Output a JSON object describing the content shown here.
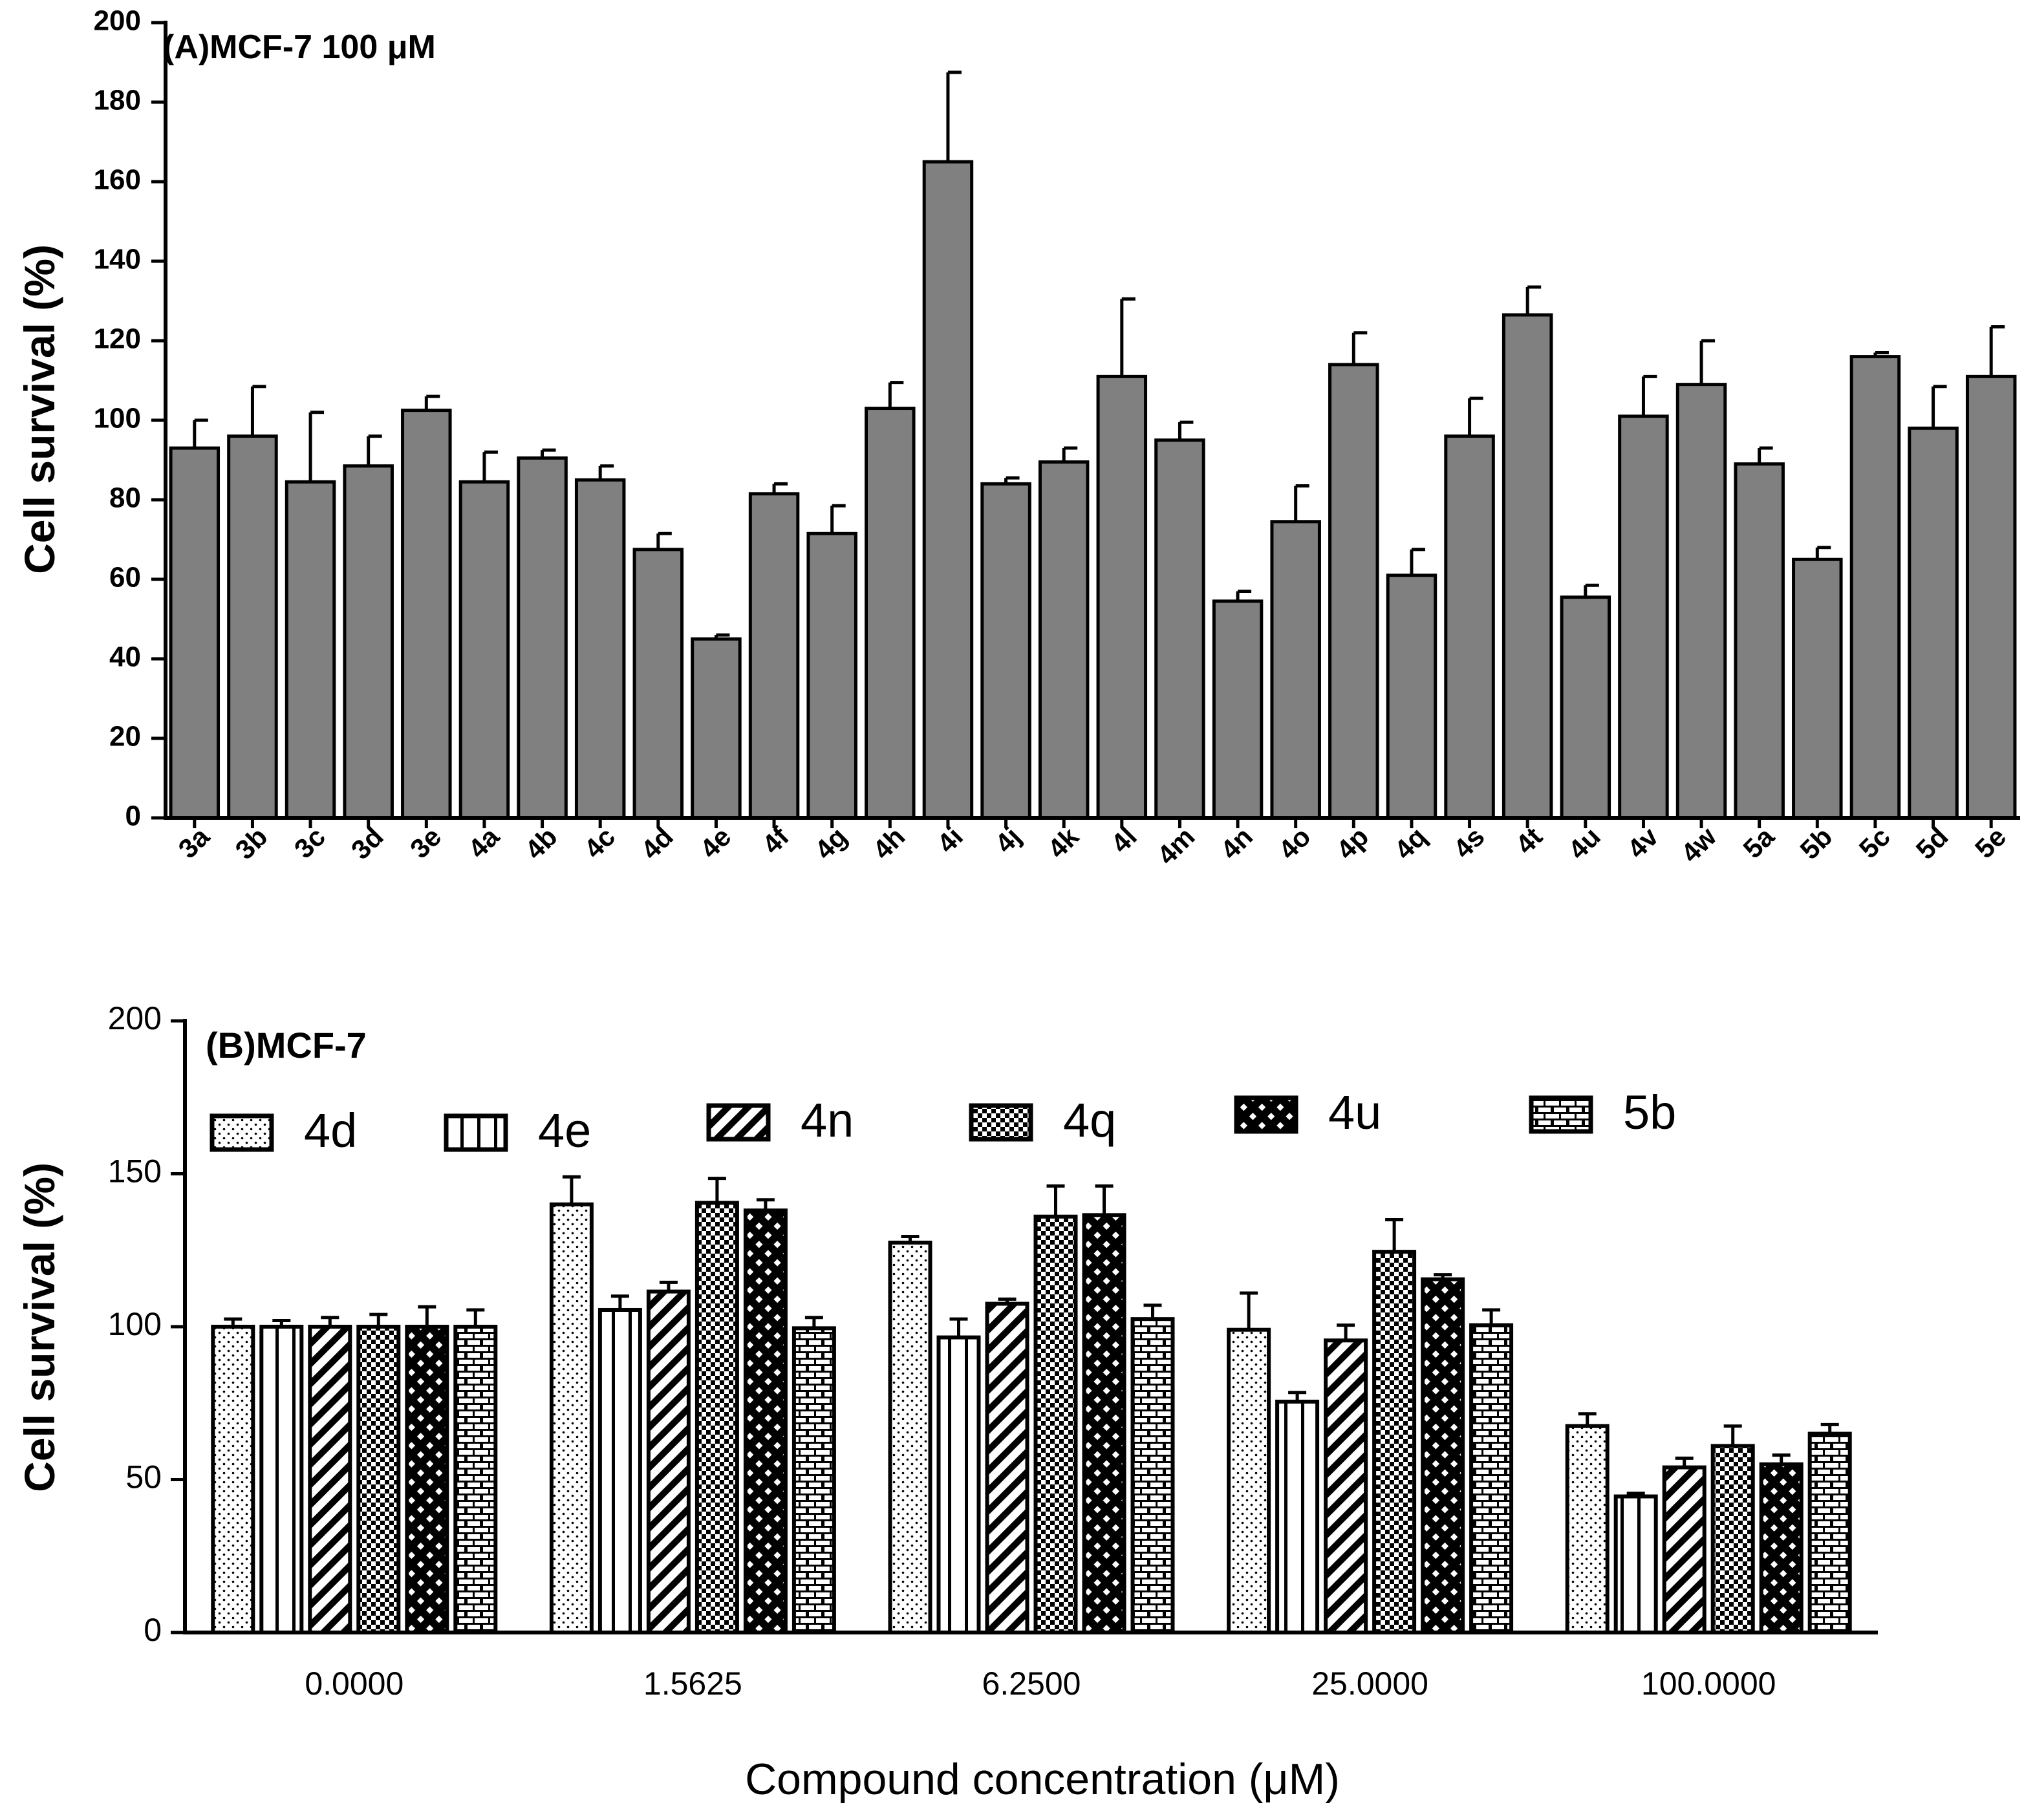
{
  "chart_data": [
    {
      "type": "bar",
      "title": "(A)MCF-7 100 μM",
      "xlabel": "",
      "ylabel": "Cell survival (%)",
      "ylim": [
        0,
        200
      ],
      "yticks": [
        0,
        20,
        40,
        60,
        80,
        100,
        120,
        140,
        160,
        180,
        200
      ],
      "ytick_labels": [
        "0",
        "20",
        "40",
        "60",
        "80",
        "100",
        "120",
        "140",
        "160",
        "180",
        "200"
      ],
      "categories": [
        "3a",
        "3b",
        "3c",
        "3d",
        "3e",
        "4a",
        "4b",
        "4c",
        "4d",
        "4e",
        "4f",
        "4g",
        "4h",
        "4i",
        "4j",
        "4k",
        "4l",
        "4m",
        "4n",
        "4o",
        "4p",
        "4q",
        "4s",
        "4t",
        "4u",
        "4v",
        "4w",
        "5a",
        "5b",
        "5c",
        "5d",
        "5e"
      ],
      "values": [
        93,
        96,
        84.5,
        88.5,
        102.5,
        84.5,
        90.5,
        85,
        67.5,
        45,
        81.5,
        71.5,
        103,
        165,
        84,
        89.5,
        111,
        95,
        54.5,
        74.5,
        114,
        61,
        96,
        126.5,
        55.5,
        101,
        109,
        89,
        65,
        116,
        98,
        111
      ],
      "errors": [
        7,
        12.5,
        17.5,
        7.5,
        3.5,
        7.5,
        2,
        3.5,
        4,
        1,
        2.5,
        7,
        6.5,
        22.5,
        1.5,
        3.5,
        19.5,
        4.5,
        2.5,
        9,
        8,
        6.5,
        9.5,
        7,
        3,
        10,
        11,
        4,
        3,
        1,
        10.5,
        12.5
      ],
      "bar_color": "#808080",
      "grid": false
    },
    {
      "type": "bar",
      "title": "(B)MCF-7",
      "xlabel": "Compound concentration (μM)",
      "ylabel": "Cell survival (%)",
      "ylim": [
        0,
        200
      ],
      "yticks": [
        0,
        50,
        100,
        150,
        200
      ],
      "ytick_labels": [
        "0",
        "50",
        "100",
        "150",
        "200"
      ],
      "categories": [
        "0.0000",
        "1.5625",
        "6.2500",
        "25.0000",
        "100.0000"
      ],
      "legend_position": "top",
      "grid": false,
      "series": [
        {
          "name": "4d",
          "pattern": "dots",
          "values": [
            100,
            140,
            127.5,
            99,
            67.5
          ],
          "errors": [
            2.5,
            9,
            2,
            12,
            4
          ]
        },
        {
          "name": "4e",
          "pattern": "vertical-lines",
          "values": [
            100,
            105.5,
            96.5,
            75.5,
            44.5
          ],
          "errors": [
            2,
            4.5,
            6,
            3,
            1
          ]
        },
        {
          "name": "4n",
          "pattern": "diagonal-lines",
          "values": [
            100,
            111.5,
            107.5,
            95.5,
            54
          ],
          "errors": [
            3,
            3,
            1.5,
            5,
            3
          ]
        },
        {
          "name": "4q",
          "pattern": "checkerboard",
          "values": [
            100,
            140.5,
            136,
            124.5,
            61
          ],
          "errors": [
            4,
            8,
            10,
            10.5,
            6.5
          ]
        },
        {
          "name": "4u",
          "pattern": "diamond-grid",
          "values": [
            100,
            138,
            136.5,
            115.5,
            55
          ],
          "errors": [
            6.5,
            3.5,
            9.5,
            1.5,
            3
          ]
        },
        {
          "name": "5b",
          "pattern": "brick",
          "values": [
            100,
            99.5,
            102.5,
            100.5,
            65
          ],
          "errors": [
            5.5,
            3.5,
            4.5,
            5,
            3
          ]
        }
      ]
    }
  ]
}
